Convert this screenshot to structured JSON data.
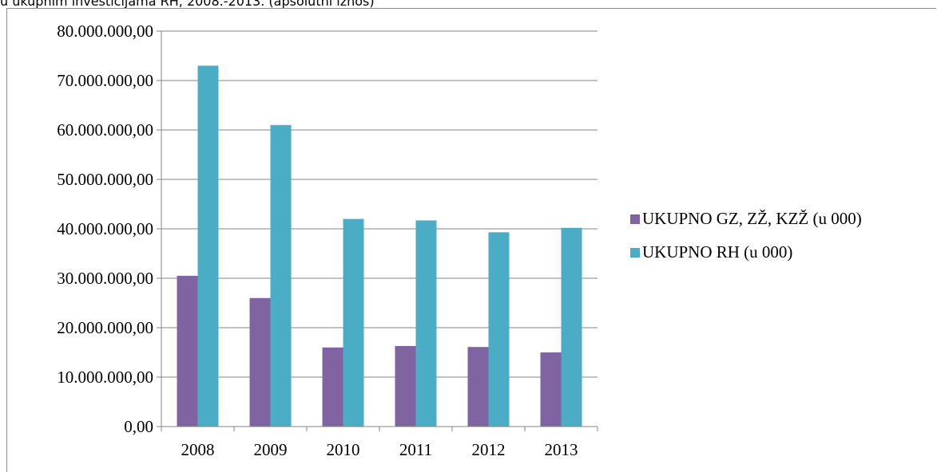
{
  "caption": "u ukupnim investicijama RH, 2008.-2013. (apsolutni iznos)",
  "chart_data": {
    "type": "bar",
    "categories": [
      "2008",
      "2009",
      "2010",
      "2011",
      "2012",
      "2013"
    ],
    "series": [
      {
        "name": "UKUPNO GZ, ZŽ, KZŽ (u 000)",
        "color": "#8064a2",
        "values": [
          30500000,
          26000000,
          16000000,
          16300000,
          16100000,
          15000000
        ]
      },
      {
        "name": "UKUPNO RH (u 000)",
        "color": "#4bacc6",
        "values": [
          73000000,
          61000000,
          42000000,
          41700000,
          39300000,
          40200000
        ]
      }
    ],
    "yticks": [
      "0,00",
      "10.000.000,00",
      "20.000.000,00",
      "30.000.000,00",
      "40.000.000,00",
      "50.000.000,00",
      "60.000.000,00",
      "70.000.000,00",
      "80.000.000,00"
    ],
    "ylim": [
      0,
      80000000
    ],
    "grid": true,
    "legend": "right"
  }
}
